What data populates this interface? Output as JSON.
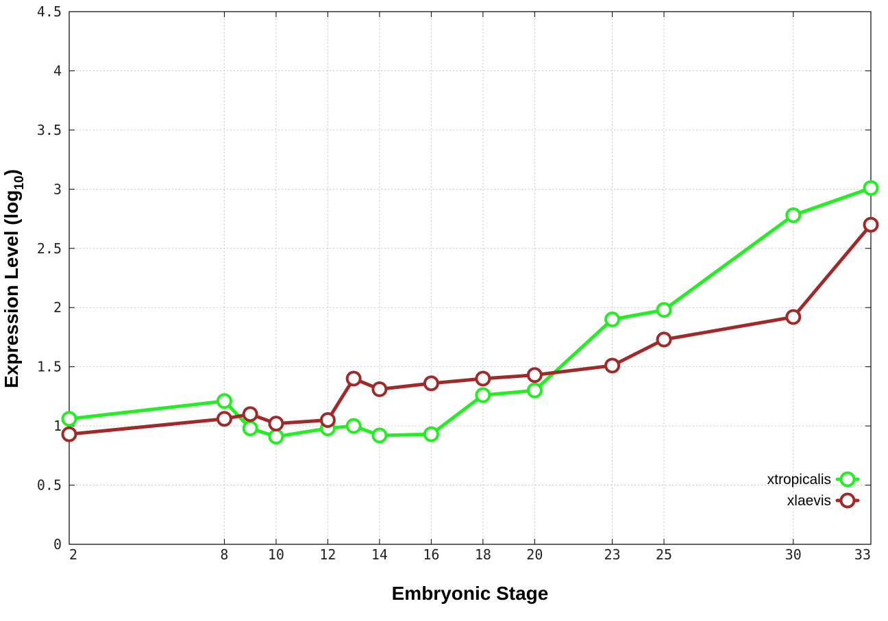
{
  "chart_data": {
    "type": "line",
    "title": "",
    "xlabel": "Embryonic Stage",
    "ylabel": "Expression Level (log",
    "ylabel_subscript": "10",
    "ylabel_suffix": ")",
    "x_ticks": [
      "2",
      "8",
      "10",
      "12",
      "14",
      "16",
      "18",
      "20",
      "23",
      "25",
      "30",
      "33"
    ],
    "y_ticks": [
      "0",
      "0.5",
      "1",
      "1.5",
      "2",
      "2.5",
      "3",
      "3.5",
      "4",
      "4.5"
    ],
    "ylim": [
      0,
      4.5
    ],
    "grid": true,
    "legend_position": "bottom-right",
    "x": [
      "2",
      "8",
      "9",
      "10",
      "12",
      "13",
      "14",
      "16",
      "18",
      "20",
      "23",
      "25",
      "30",
      "33"
    ],
    "series": [
      {
        "name": "xtropicalis",
        "color": "#22ee22",
        "values": [
          1.06,
          1.21,
          0.98,
          0.91,
          0.98,
          1.0,
          0.92,
          0.93,
          1.26,
          1.3,
          1.9,
          1.98,
          2.78,
          3.01
        ]
      },
      {
        "name": "xlaevis",
        "color": "#a02a2a",
        "values": [
          0.93,
          1.06,
          1.1,
          1.02,
          1.05,
          1.4,
          1.31,
          1.36,
          1.4,
          1.43,
          1.51,
          1.73,
          1.92,
          2.7
        ]
      }
    ]
  }
}
